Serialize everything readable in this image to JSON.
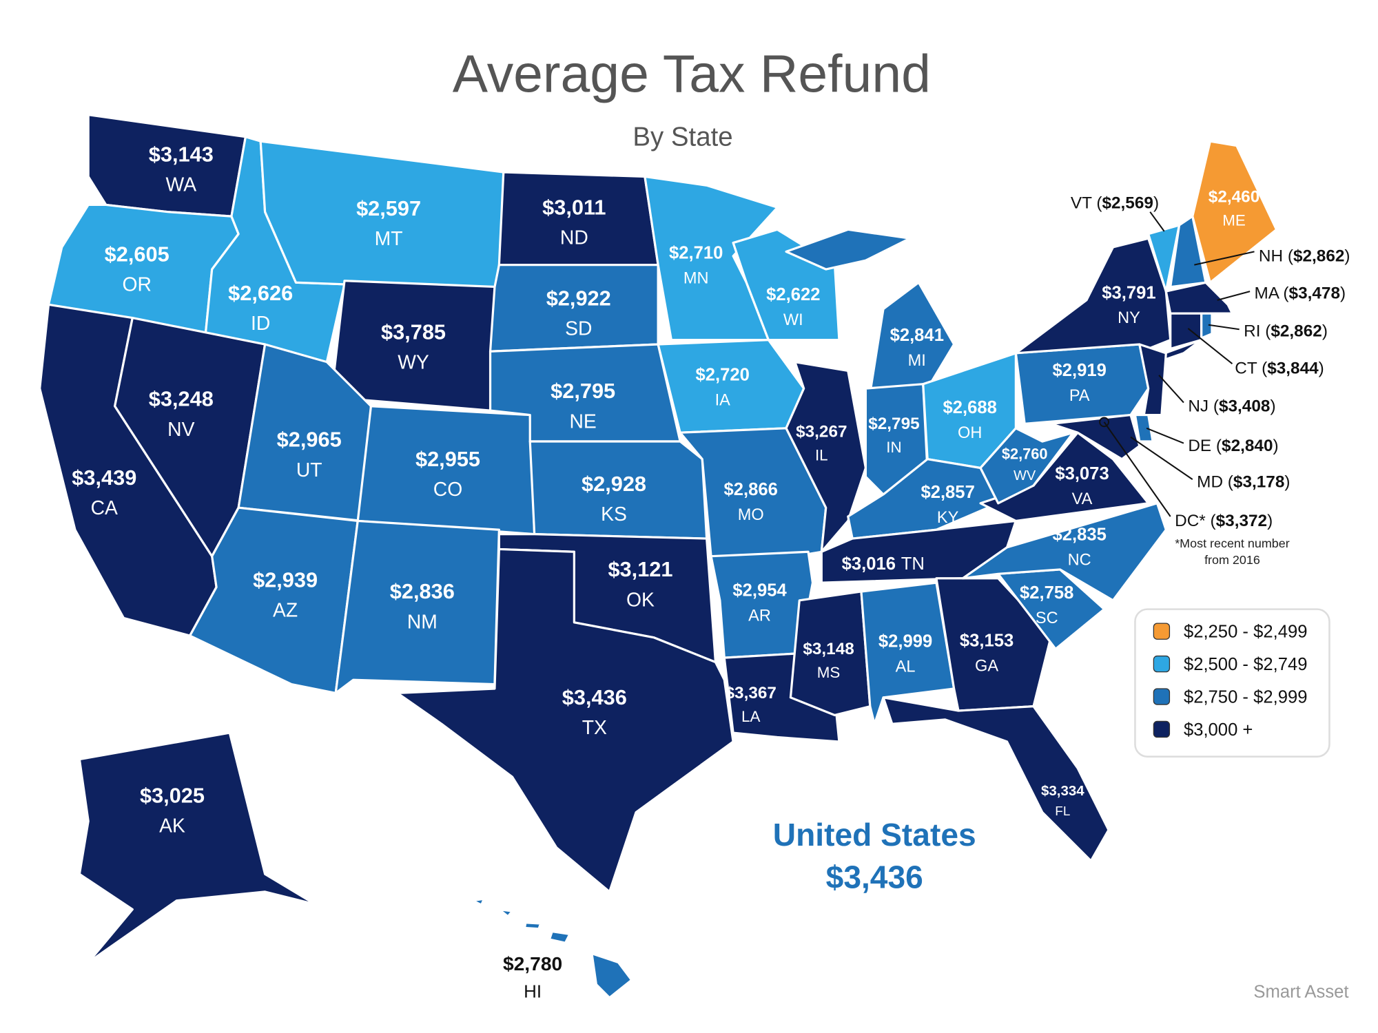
{
  "title": "Average Tax Refund",
  "subtitle": "By State",
  "legend": [
    {
      "label": "$2,250 - $2,499",
      "color": "#f59a33"
    },
    {
      "label": "$2,500 - $2,749",
      "color": "#2ea7e3"
    },
    {
      "label": "$2,750 - $2,999",
      "color": "#1f72b8"
    },
    {
      "label": "$3,000 +",
      "color": "#0e2260"
    }
  ],
  "states": [
    {
      "code": "WA",
      "refund": "$3,143",
      "color": "#0e2260"
    },
    {
      "code": "OR",
      "refund": "$2,605",
      "color": "#2ea7e3"
    },
    {
      "code": "CA",
      "refund": "$3,439",
      "color": "#0e2260"
    },
    {
      "code": "ID",
      "refund": "$2,626",
      "color": "#2ea7e3"
    },
    {
      "code": "NV",
      "refund": "$3,248",
      "color": "#0e2260"
    },
    {
      "code": "MT",
      "refund": "$2,597",
      "color": "#2ea7e3"
    },
    {
      "code": "WY",
      "refund": "$3,785",
      "color": "#0e2260"
    },
    {
      "code": "UT",
      "refund": "$2,965",
      "color": "#1f72b8"
    },
    {
      "code": "AZ",
      "refund": "$2,939",
      "color": "#1f72b8"
    },
    {
      "code": "CO",
      "refund": "$2,955",
      "color": "#1f72b8"
    },
    {
      "code": "NM",
      "refund": "$2,836",
      "color": "#1f72b8"
    },
    {
      "code": "ND",
      "refund": "$3,011",
      "color": "#0e2260"
    },
    {
      "code": "SD",
      "refund": "$2,922",
      "color": "#1f72b8"
    },
    {
      "code": "NE",
      "refund": "$2,795",
      "color": "#1f72b8"
    },
    {
      "code": "KS",
      "refund": "$2,928",
      "color": "#1f72b8"
    },
    {
      "code": "OK",
      "refund": "$3,121",
      "color": "#0e2260"
    },
    {
      "code": "TX",
      "refund": "$3,436",
      "color": "#0e2260"
    },
    {
      "code": "MN",
      "refund": "$2,710",
      "color": "#2ea7e3"
    },
    {
      "code": "IA",
      "refund": "$2,720",
      "color": "#2ea7e3"
    },
    {
      "code": "MO",
      "refund": "$2,866",
      "color": "#1f72b8"
    },
    {
      "code": "AR",
      "refund": "$2,954",
      "color": "#1f72b8"
    },
    {
      "code": "LA",
      "refund": "$3,367",
      "color": "#0e2260"
    },
    {
      "code": "WI",
      "refund": "$2,622",
      "color": "#2ea7e3"
    },
    {
      "code": "IL",
      "refund": "$3,267",
      "color": "#0e2260"
    },
    {
      "code": "MI",
      "refund": "$2,841",
      "color": "#1f72b8"
    },
    {
      "code": "IN",
      "refund": "$2,795",
      "color": "#1f72b8"
    },
    {
      "code": "OH",
      "refund": "$2,688",
      "color": "#2ea7e3"
    },
    {
      "code": "KY",
      "refund": "$2,857",
      "color": "#1f72b8"
    },
    {
      "code": "TN",
      "refund": "$3,016",
      "color": "#0e2260"
    },
    {
      "code": "MS",
      "refund": "$3,148",
      "color": "#0e2260"
    },
    {
      "code": "AL",
      "refund": "$2,999",
      "color": "#1f72b8"
    },
    {
      "code": "GA",
      "refund": "$3,153",
      "color": "#0e2260"
    },
    {
      "code": "FL",
      "refund": "$3,334",
      "color": "#0e2260"
    },
    {
      "code": "SC",
      "refund": "$2,758",
      "color": "#1f72b8"
    },
    {
      "code": "NC",
      "refund": "$2,835",
      "color": "#1f72b8"
    },
    {
      "code": "VA",
      "refund": "$3,073",
      "color": "#0e2260"
    },
    {
      "code": "WV",
      "refund": "$2,760",
      "color": "#1f72b8"
    },
    {
      "code": "PA",
      "refund": "$2,919",
      "color": "#1f72b8"
    },
    {
      "code": "NY",
      "refund": "$3,791",
      "color": "#0e2260"
    },
    {
      "code": "ME",
      "refund": "$2,460",
      "color": "#f59a33"
    },
    {
      "code": "AK",
      "refund": "$3,025",
      "color": "#0e2260"
    },
    {
      "code": "HI",
      "refund": "$2,780",
      "color": "#1f72b8"
    },
    {
      "label": "VT ($2,569)",
      "color": "#2ea7e3"
    },
    {
      "label": "NH ($2,862)",
      "color": "#1f72b8"
    },
    {
      "label": "MA ($3,478)",
      "color": "#0e2260"
    },
    {
      "label": "RI ($2,862)",
      "color": "#1f72b8"
    },
    {
      "label": "CT ($3,844)",
      "color": "#0e2260"
    },
    {
      "label": "NJ ($3,408)",
      "color": "#0e2260"
    },
    {
      "label": "DE ($2,840)",
      "color": "#1f72b8"
    },
    {
      "label": "MD ($3,178)",
      "color": "#0e2260"
    },
    {
      "label": "DC* ($3,372)",
      "color": "#0e2260"
    }
  ],
  "footnote": [
    "*Most recent number",
    "from 2016"
  ],
  "national": {
    "name": "United States",
    "refund": "$3,436"
  },
  "source": "Smart Asset"
}
